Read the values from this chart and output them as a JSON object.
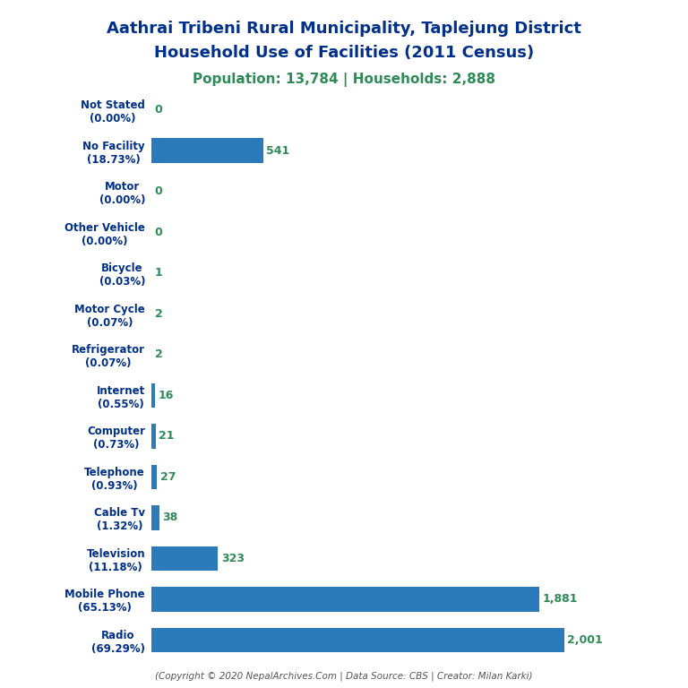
{
  "title_line1": "Aathrai Tribeni Rural Municipality, Taplejung District",
  "title_line2": "Household Use of Facilities (2011 Census)",
  "subtitle": "Population: 13,784 | Households: 2,888",
  "footer": "(Copyright © 2020 NepalArchives.Com | Data Source: CBS | Creator: Milan Karki)",
  "categories": [
    "Radio\n(69.29%)",
    "Mobile Phone\n(65.13%)",
    "Television\n(11.18%)",
    "Cable Tv\n(1.32%)",
    "Telephone\n(0.93%)",
    "Computer\n(0.73%)",
    "Internet\n(0.55%)",
    "Refrigerator\n(0.07%)",
    "Motor Cycle\n(0.07%)",
    "Bicycle\n(0.03%)",
    "Other Vehicle\n(0.00%)",
    "Motor\n(0.00%)",
    "No Facility\n(18.73%)",
    "Not Stated\n(0.00%)"
  ],
  "values": [
    2001,
    1881,
    323,
    38,
    27,
    21,
    16,
    2,
    2,
    1,
    0,
    0,
    541,
    0
  ],
  "bar_color": "#2b7bba",
  "label_color": "#2e8b57",
  "title_color": "#003087",
  "subtitle_color": "#2e8b57",
  "footer_color": "#555555",
  "background_color": "#ffffff",
  "xlim": [
    0,
    2200
  ]
}
